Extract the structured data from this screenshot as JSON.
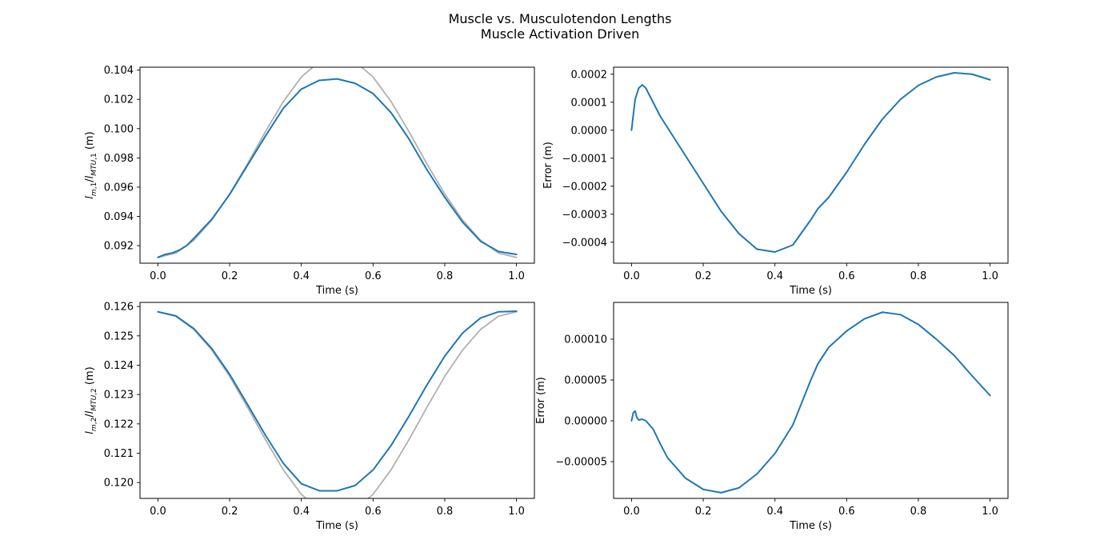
{
  "figure": {
    "title_line1": "Muscle vs. Musculotendon Lengths",
    "title_line2": "Muscle Activation Driven"
  },
  "chart_data": [
    {
      "type": "line",
      "xlabel": "Time (s)",
      "ylabel": "l_{m,1}/l_{MTU,1} (m)",
      "xlim": [
        -0.05,
        1.05
      ],
      "ylim": [
        0.0908,
        0.1042
      ],
      "xticks": [
        "0.0",
        "0.2",
        "0.4",
        "0.6",
        "0.8",
        "1.0"
      ],
      "yticks": [
        "0.092",
        "0.094",
        "0.096",
        "0.098",
        "0.100",
        "0.102",
        "0.104"
      ],
      "grid": false,
      "series": [
        {
          "color": "#b0b0b0",
          "x": [
            0.0,
            0.05,
            0.1,
            0.15,
            0.2,
            0.25,
            0.3,
            0.35,
            0.4,
            0.45,
            0.5,
            0.55,
            0.6,
            0.65,
            0.7,
            0.75,
            0.8,
            0.85,
            0.9,
            0.95,
            1.0
          ],
          "y": [
            0.0912,
            0.09149,
            0.09236,
            0.09374,
            0.09553,
            0.0976,
            0.0998,
            0.10186,
            0.10353,
            0.10458,
            0.10496,
            0.10458,
            0.10353,
            0.10186,
            0.0998,
            0.0976,
            0.09553,
            0.09374,
            0.09236,
            0.09149,
            0.0912
          ]
        },
        {
          "color": "#1f77b4",
          "x": [
            0.0,
            0.02,
            0.04,
            0.06,
            0.08,
            0.1,
            0.15,
            0.2,
            0.25,
            0.3,
            0.35,
            0.4,
            0.45,
            0.5,
            0.55,
            0.6,
            0.65,
            0.7,
            0.75,
            0.8,
            0.85,
            0.9,
            0.95,
            1.0
          ],
          "y": [
            0.0912,
            0.0914,
            0.0915,
            0.0917,
            0.092,
            0.0925,
            0.0938,
            0.0955,
            0.0975,
            0.0995,
            0.1014,
            0.1027,
            0.1033,
            0.1034,
            0.1031,
            0.1024,
            0.1011,
            0.0993,
            0.0972,
            0.0953,
            0.0936,
            0.0923,
            0.0916,
            0.0914
          ]
        }
      ]
    },
    {
      "type": "line",
      "xlabel": "Time (s)",
      "ylabel": "Error (m)",
      "xlim": [
        -0.05,
        1.05
      ],
      "ylim": [
        -0.000475,
        0.000225
      ],
      "xticks": [
        "0.0",
        "0.2",
        "0.4",
        "0.6",
        "0.8",
        "1.0"
      ],
      "yticks": [
        "−0.0004",
        "−0.0003",
        "−0.0002",
        "−0.0001",
        "0.0000",
        "0.0001",
        "0.0002"
      ],
      "grid": false,
      "series": [
        {
          "color": "#1f77b4",
          "x": [
            0.0,
            0.01,
            0.02,
            0.03,
            0.04,
            0.06,
            0.08,
            0.1,
            0.15,
            0.2,
            0.25,
            0.3,
            0.35,
            0.4,
            0.45,
            0.5,
            0.52,
            0.55,
            0.6,
            0.65,
            0.7,
            0.75,
            0.8,
            0.85,
            0.9,
            0.95,
            1.0
          ],
          "y": [
            0.0,
            0.00011,
            0.00015,
            0.000162,
            0.00015,
            0.0001,
            5e-05,
            1e-05,
            -9e-05,
            -0.00019,
            -0.00029,
            -0.00037,
            -0.000425,
            -0.000435,
            -0.00041,
            -0.00032,
            -0.00028,
            -0.00024,
            -0.00015,
            -5e-05,
            4e-05,
            0.00011,
            0.00016,
            0.00019,
            0.000205,
            0.0002,
            0.00018
          ]
        }
      ]
    },
    {
      "type": "line",
      "xlabel": "Time (s)",
      "ylabel": "l_{m,2}/l_{MTU,2} (m)",
      "xlim": [
        -0.05,
        1.05
      ],
      "ylim": [
        0.11946,
        0.12614
      ],
      "xticks": [
        "0.0",
        "0.2",
        "0.4",
        "0.6",
        "0.8",
        "1.0"
      ],
      "yticks": [
        "0.120",
        "0.121",
        "0.122",
        "0.123",
        "0.124",
        "0.125",
        "0.126"
      ],
      "grid": false,
      "series": [
        {
          "color": "#b0b0b0",
          "x": [
            0.0,
            0.05,
            0.1,
            0.15,
            0.2,
            0.25,
            0.3,
            0.35,
            0.4,
            0.45,
            0.5,
            0.55,
            0.6,
            0.65,
            0.7,
            0.75,
            0.8,
            0.85,
            0.9,
            0.95,
            1.0
          ],
          "y": [
            0.12582,
            0.12567,
            0.12522,
            0.12452,
            0.12362,
            0.12256,
            0.12146,
            0.12043,
            0.1196,
            0.11907,
            0.11888,
            0.11907,
            0.1196,
            0.12043,
            0.12146,
            0.12256,
            0.12362,
            0.12452,
            0.12522,
            0.12567,
            0.12582
          ]
        },
        {
          "color": "#1f77b4",
          "x": [
            0.0,
            0.05,
            0.1,
            0.15,
            0.2,
            0.25,
            0.3,
            0.35,
            0.4,
            0.45,
            0.5,
            0.55,
            0.6,
            0.65,
            0.7,
            0.75,
            0.8,
            0.85,
            0.9,
            0.95,
            1.0
          ],
          "y": [
            0.12582,
            0.12568,
            0.12525,
            0.12457,
            0.12369,
            0.12266,
            0.12161,
            0.12065,
            0.11996,
            0.11972,
            0.11972,
            0.1199,
            0.12043,
            0.12126,
            0.12226,
            0.12332,
            0.12431,
            0.1251,
            0.12561,
            0.12582,
            0.12584
          ]
        }
      ]
    },
    {
      "type": "line",
      "xlabel": "Time (s)",
      "ylabel": "Error (m)",
      "xlim": [
        -0.05,
        1.05
      ],
      "ylim": [
        -9.5e-05,
        0.000145
      ],
      "xticks": [
        "0.0",
        "0.2",
        "0.4",
        "0.6",
        "0.8",
        "1.0"
      ],
      "yticks": [
        "−0.00005",
        "0.00000",
        "0.00005",
        "0.00010"
      ],
      "grid": false,
      "series": [
        {
          "color": "#1f77b4",
          "x": [
            0.0,
            0.005,
            0.01,
            0.015,
            0.02,
            0.03,
            0.04,
            0.06,
            0.08,
            0.1,
            0.15,
            0.2,
            0.25,
            0.3,
            0.35,
            0.4,
            0.45,
            0.5,
            0.52,
            0.55,
            0.6,
            0.65,
            0.7,
            0.75,
            0.8,
            0.85,
            0.9,
            0.95,
            1.0
          ],
          "y": [
            0.0,
            1e-05,
            1.2e-05,
            4e-06,
            1e-06,
            2e-06,
            0.0,
            -1e-05,
            -2.8e-05,
            -4.5e-05,
            -7e-05,
            -8.4e-05,
            -8.8e-05,
            -8.2e-05,
            -6.5e-05,
            -4e-05,
            -5e-06,
            5e-05,
            7e-05,
            9e-05,
            0.00011,
            0.000125,
            0.000133,
            0.00013,
            0.000118,
            0.0001,
            8e-05,
            5.5e-05,
            3.1e-05
          ]
        }
      ]
    }
  ]
}
